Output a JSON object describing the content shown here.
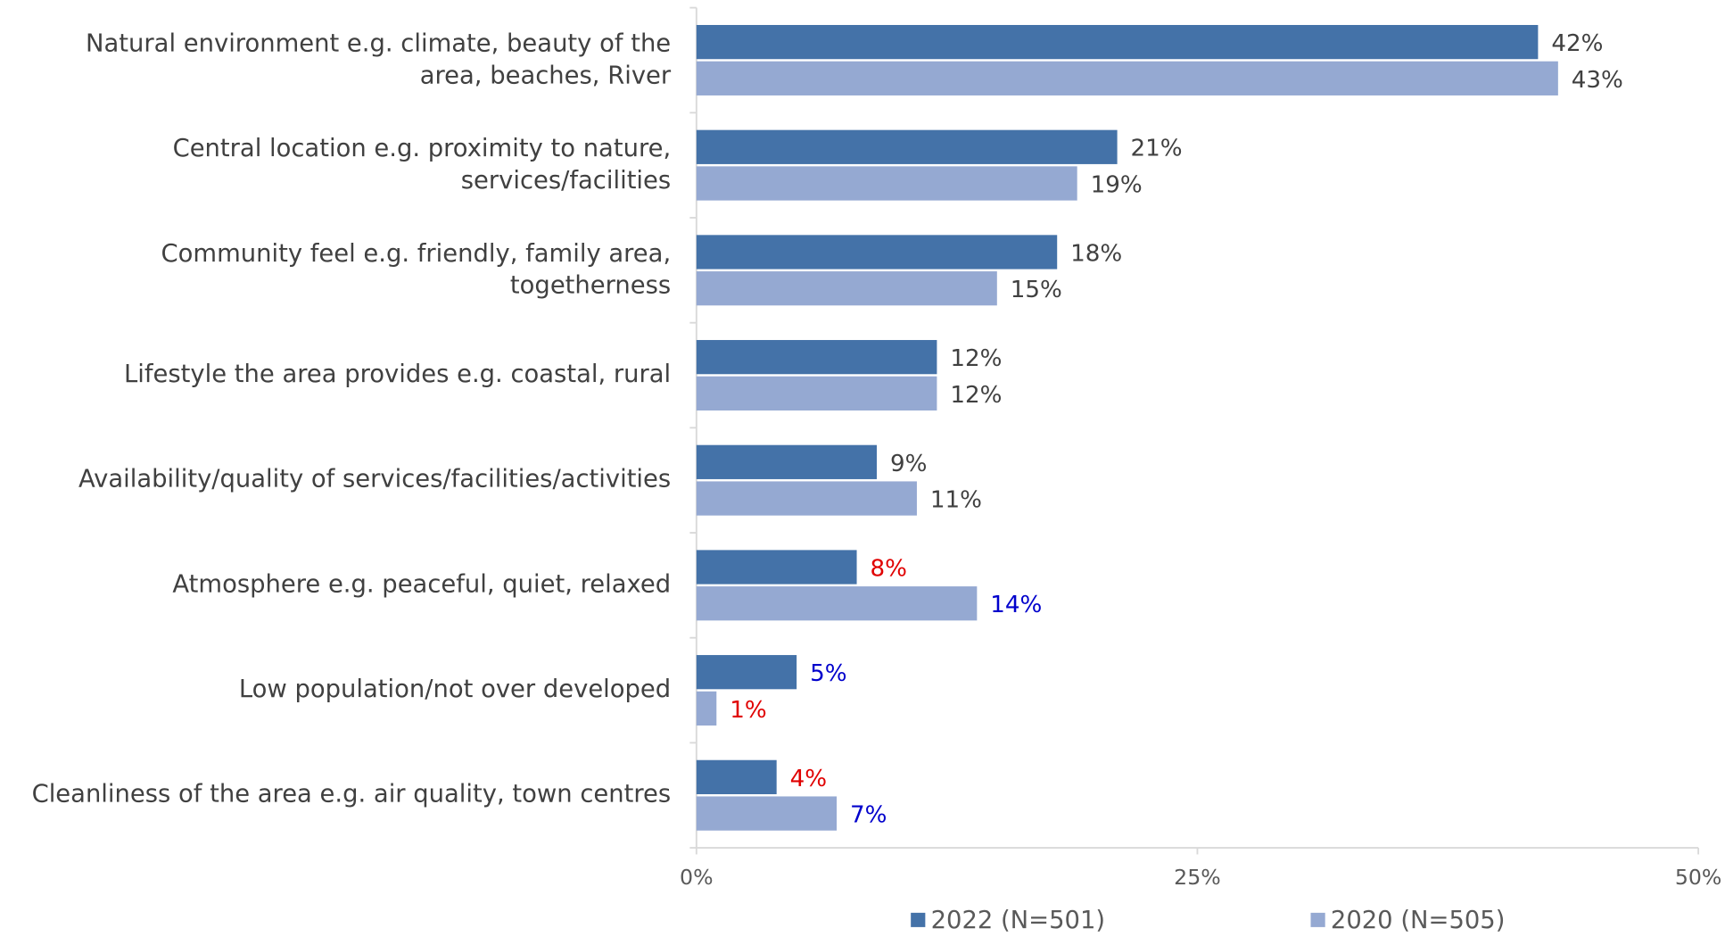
{
  "chart_data": {
    "type": "bar",
    "orientation": "horizontal",
    "categories": [
      "Natural environment e.g. climate, beauty of the\narea, beaches, River",
      "Central location e.g. proximity to nature,\nservices/facilities",
      "Community feel e.g. friendly, family area,\ntogetherness",
      "Lifestyle the area provides e.g. coastal, rural",
      "Availability/quality of services/facilities/activities",
      "Atmosphere e.g. peaceful, quiet, relaxed",
      "Low population/not over developed",
      "Cleanliness of the area e.g. air quality, town centres"
    ],
    "series": [
      {
        "name": "2022 (N=501)",
        "color": "#4472a8",
        "values": [
          42,
          21,
          18,
          12,
          9,
          8,
          5,
          4
        ],
        "value_labels": [
          "42%",
          "21%",
          "18%",
          "12%",
          "9%",
          "8%",
          "5%",
          "4%"
        ],
        "label_colors": [
          "#404040",
          "#404040",
          "#404040",
          "#404040",
          "#404040",
          "#e00000",
          "#0000cc",
          "#e00000"
        ]
      },
      {
        "name": "2020 (N=505)",
        "color": "#95a9d2",
        "values": [
          43,
          19,
          15,
          12,
          11,
          14,
          1,
          7
        ],
        "value_labels": [
          "43%",
          "19%",
          "15%",
          "12%",
          "11%",
          "14%",
          "1%",
          "7%"
        ],
        "label_colors": [
          "#404040",
          "#404040",
          "#404040",
          "#404040",
          "#404040",
          "#0000cc",
          "#e00000",
          "#0000cc"
        ]
      }
    ],
    "xlim": [
      0,
      50
    ],
    "xticks": [
      {
        "value": 0,
        "label": "0%"
      },
      {
        "value": 25,
        "label": "25%"
      },
      {
        "value": 50,
        "label": "50%"
      }
    ],
    "grid": false,
    "legend": "bottom"
  }
}
